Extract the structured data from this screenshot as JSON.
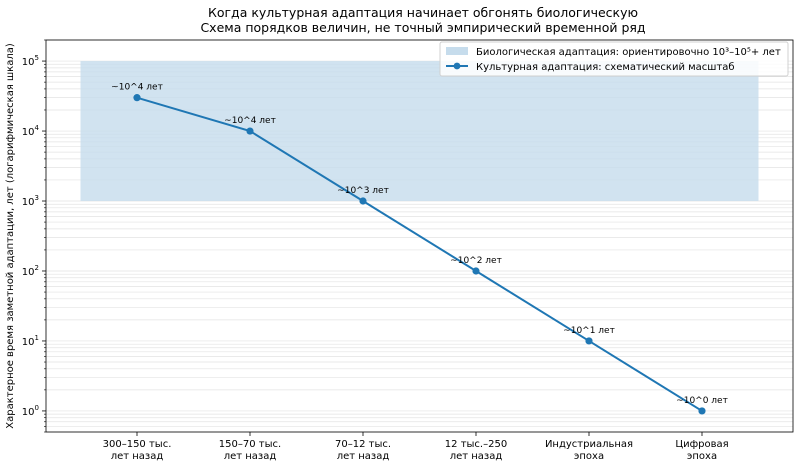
{
  "chart_data": {
    "type": "line",
    "title": "Когда культурная адаптация начинает обгонять биологическую",
    "subtitle": "Схема порядков величин, не точный эмпирический временной ряд",
    "xlabel": "",
    "ylabel": "Характерное время заметной адаптации, лет (логарифмическая шкала)",
    "y_scale": "log",
    "ylim": [
      0.5,
      200000
    ],
    "grid": "horizontal minor, light",
    "legend_position": "top-right",
    "categories": [
      [
        "300–150 тыс.",
        "лет назад"
      ],
      [
        "150–70 тыс.",
        "лет назад"
      ],
      [
        "70–12 тыс.",
        "лет назад"
      ],
      [
        "12 тыс.–250",
        "лет назад"
      ],
      [
        "Индустриальная",
        "эпоха"
      ],
      [
        "Цифровая",
        "эпоха"
      ]
    ],
    "y_ticks": [
      {
        "value": 1,
        "mantissa": "10",
        "exp": "0"
      },
      {
        "value": 10,
        "mantissa": "10",
        "exp": "1"
      },
      {
        "value": 100,
        "mantissa": "10",
        "exp": "2"
      },
      {
        "value": 1000,
        "mantissa": "10",
        "exp": "3"
      },
      {
        "value": 10000,
        "mantissa": "10",
        "exp": "4"
      },
      {
        "value": 100000,
        "mantissa": "10",
        "exp": "5"
      }
    ],
    "band": {
      "name": "Биологическая адаптация: ориентировочно 10³–10⁵+ лет",
      "y_min": 1000,
      "y_max": 100000,
      "color": "#c6dcec"
    },
    "series": [
      {
        "name": "Культурная адаптация: схематический масштаб",
        "color": "#1f77b4",
        "values": [
          30000,
          10000,
          1000,
          100,
          10,
          1
        ],
        "labels": [
          "~10^4 лет",
          "~10^4 лет",
          "~10^3 лет",
          "~10^2 лет",
          "~10^1 лет",
          "~10^0 лет"
        ]
      }
    ]
  }
}
